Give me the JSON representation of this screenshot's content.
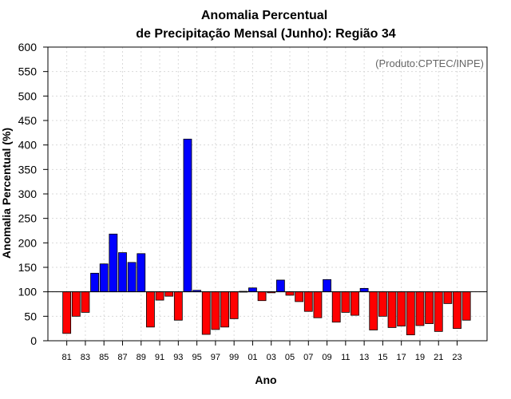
{
  "chart_data": {
    "type": "bar",
    "title_line1": "Anomalia Percentual",
    "title_line2": "de Precipitação Mensal (Junho): Região 34",
    "credit": "(Produto:CPTEC/INPE)",
    "xlabel": "Ano",
    "ylabel": "Anomalia Percentual (%)",
    "ylim": [
      0,
      600
    ],
    "yticks": [
      0,
      50,
      100,
      150,
      200,
      250,
      300,
      350,
      400,
      450,
      500,
      550,
      600
    ],
    "baseline": 100,
    "grid": true,
    "colors": {
      "above": "#0000ff",
      "below": "#ff0000",
      "outline": "#000000",
      "grid": "#d9d9d9"
    },
    "categories": [
      "81",
      "82",
      "83",
      "84",
      "85",
      "86",
      "87",
      "88",
      "89",
      "90",
      "91",
      "92",
      "93",
      "94",
      "95",
      "96",
      "97",
      "98",
      "99",
      "00",
      "01",
      "02",
      "03",
      "04",
      "05",
      "06",
      "07",
      "08",
      "09",
      "10",
      "11",
      "12",
      "13",
      "14",
      "15",
      "16",
      "17",
      "18",
      "19",
      "20",
      "21",
      "22",
      "23",
      "24"
    ],
    "xtick_labels": [
      "81",
      "83",
      "85",
      "87",
      "89",
      "91",
      "93",
      "95",
      "97",
      "99",
      "01",
      "03",
      "05",
      "07",
      "09",
      "11",
      "13",
      "15",
      "17",
      "19",
      "21",
      "23"
    ],
    "values": [
      15,
      50,
      58,
      138,
      157,
      218,
      180,
      160,
      178,
      28,
      83,
      91,
      42,
      412,
      103,
      13,
      23,
      28,
      45,
      101,
      108,
      82,
      98,
      124,
      93,
      80,
      60,
      47,
      125,
      38,
      58,
      52,
      107,
      22,
      50,
      27,
      30,
      12,
      31,
      35,
      19,
      76,
      25,
      42
    ]
  }
}
